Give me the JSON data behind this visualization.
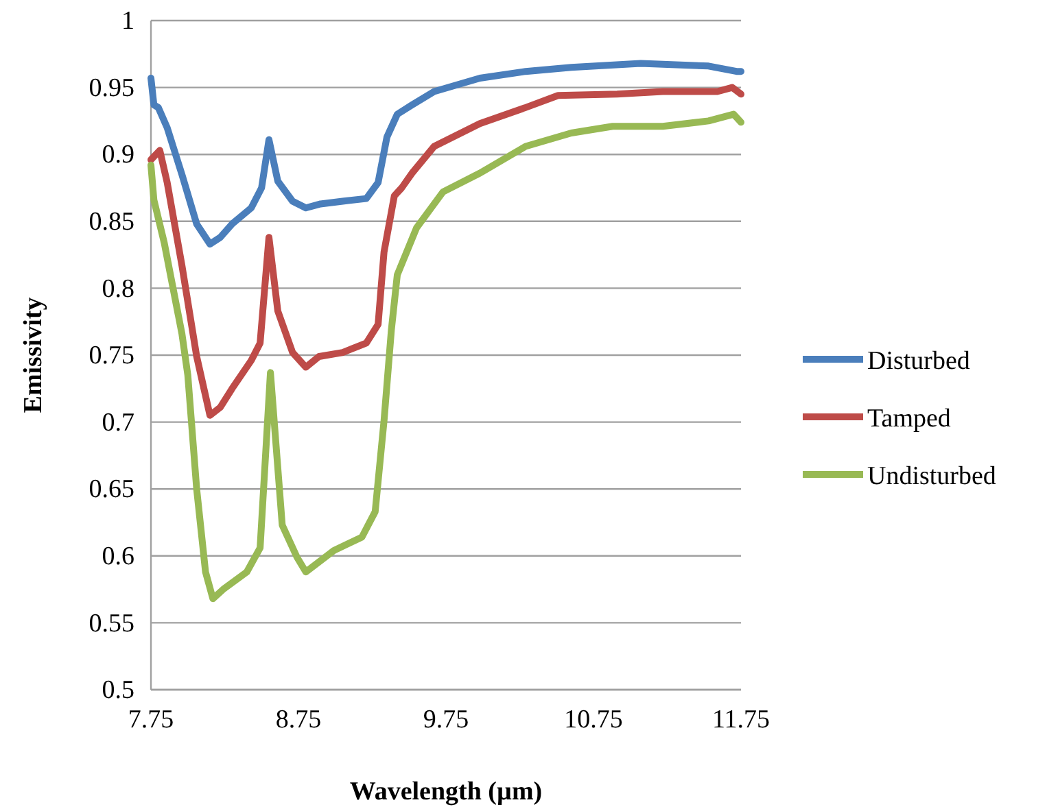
{
  "chart_data": {
    "type": "line",
    "xlabel": "Wavelength (µm)",
    "ylabel": "Emissivity",
    "xlim": [
      7.75,
      11.75
    ],
    "xticks": [
      7.75,
      8.75,
      9.75,
      10.75,
      11.75
    ],
    "ylim": [
      0.5,
      1
    ],
    "yticks": [
      0.5,
      0.55,
      0.6,
      0.65,
      0.7,
      0.75,
      0.8,
      0.85,
      0.9,
      0.95,
      1
    ],
    "grid": "y",
    "legend": "right",
    "marker": "none",
    "line_style": "solid",
    "series": [
      {
        "name": "Disturbed",
        "color": "#4a7ebb",
        "x": [
          7.75,
          7.77,
          7.8,
          7.86,
          7.96,
          8.06,
          8.15,
          8.22,
          8.3,
          8.43,
          8.5,
          8.55,
          8.61,
          8.71,
          8.8,
          8.9,
          9.05,
          9.21,
          9.29,
          9.35,
          9.42,
          9.52,
          9.67,
          9.98,
          10.29,
          10.6,
          11.07,
          11.53,
          11.72,
          11.75
        ],
        "values": [
          0.957,
          0.937,
          0.935,
          0.92,
          0.885,
          0.848,
          0.833,
          0.838,
          0.848,
          0.86,
          0.875,
          0.911,
          0.88,
          0.865,
          0.86,
          0.863,
          0.865,
          0.867,
          0.879,
          0.913,
          0.93,
          0.937,
          0.947,
          0.957,
          0.962,
          0.965,
          0.968,
          0.966,
          0.962,
          0.962
        ]
      },
      {
        "name": "Tamped",
        "color": "#be4b48",
        "x": [
          7.75,
          7.81,
          7.86,
          7.96,
          8.06,
          8.15,
          8.22,
          8.3,
          8.43,
          8.49,
          8.55,
          8.61,
          8.71,
          8.8,
          8.89,
          9.05,
          9.21,
          9.29,
          9.33,
          9.4,
          9.45,
          9.52,
          9.67,
          9.98,
          10.29,
          10.51,
          10.91,
          11.22,
          11.59,
          11.69,
          11.75
        ],
        "values": [
          0.896,
          0.903,
          0.879,
          0.817,
          0.749,
          0.705,
          0.711,
          0.725,
          0.746,
          0.759,
          0.838,
          0.783,
          0.752,
          0.741,
          0.749,
          0.752,
          0.759,
          0.773,
          0.827,
          0.869,
          0.875,
          0.886,
          0.906,
          0.923,
          0.935,
          0.944,
          0.945,
          0.947,
          0.947,
          0.95,
          0.945
        ]
      },
      {
        "name": "Undisturbed",
        "color": "#98b954",
        "x": [
          7.75,
          7.77,
          7.84,
          7.96,
          8.0,
          8.06,
          8.12,
          8.17,
          8.24,
          8.4,
          8.49,
          8.56,
          8.64,
          8.74,
          8.8,
          8.99,
          9.18,
          9.27,
          9.33,
          9.38,
          9.42,
          9.55,
          9.73,
          9.98,
          10.29,
          10.6,
          10.88,
          11.22,
          11.53,
          11.7,
          11.75
        ],
        "values": [
          0.892,
          0.866,
          0.834,
          0.766,
          0.735,
          0.65,
          0.588,
          0.568,
          0.575,
          0.588,
          0.606,
          0.737,
          0.623,
          0.599,
          0.588,
          0.604,
          0.614,
          0.633,
          0.701,
          0.769,
          0.81,
          0.845,
          0.872,
          0.886,
          0.906,
          0.916,
          0.921,
          0.921,
          0.925,
          0.93,
          0.924
        ]
      }
    ]
  }
}
